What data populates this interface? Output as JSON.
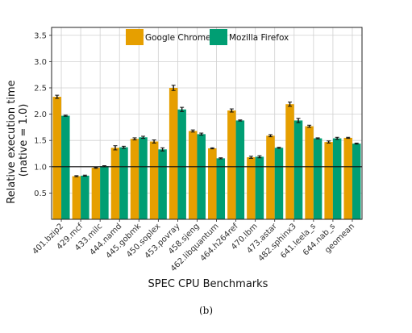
{
  "caption": "(b)",
  "chart_data": {
    "type": "bar",
    "xlabel": "SPEC CPU Benchmarks",
    "ylabel_lines": [
      "Relative execution time",
      "(native = 1.0)"
    ],
    "ylim": [
      0.0,
      3.65
    ],
    "yticks": [
      0.5,
      1.0,
      1.5,
      2.0,
      2.5,
      3.0,
      3.5
    ],
    "ytick_labels": [
      "0.5",
      "1.0",
      "1.5",
      "2.0",
      "2.5",
      "3.0",
      "3.5"
    ],
    "reference_line": 1.0,
    "grid": true,
    "legend_position": "top-center",
    "categories": [
      "401.bzip2",
      "429.mcf",
      "433.milc",
      "444.namd",
      "445.gobmk",
      "450.soplex",
      "453.povray",
      "458.sjeng",
      "462.libquantum",
      "464.h264ref",
      "470.lbm",
      "473.astar",
      "482.sphinx3",
      "641.leela_s",
      "644.nab_s",
      "geomean"
    ],
    "series": [
      {
        "name": "Google Chrome",
        "color": "#E69F00",
        "values": [
          2.33,
          0.82,
          0.98,
          1.36,
          1.53,
          1.48,
          2.5,
          1.68,
          1.35,
          2.07,
          1.18,
          1.59,
          2.19,
          1.77,
          1.47,
          1.55
        ],
        "errors": [
          0.03,
          0.01,
          0.01,
          0.04,
          0.02,
          0.03,
          0.05,
          0.02,
          0.01,
          0.03,
          0.02,
          0.02,
          0.04,
          0.02,
          0.02,
          0.01
        ]
      },
      {
        "name": "Mozilla Firefox",
        "color": "#009E73",
        "values": [
          1.97,
          0.83,
          1.01,
          1.37,
          1.56,
          1.33,
          2.09,
          1.62,
          1.16,
          1.88,
          1.19,
          1.36,
          1.88,
          1.54,
          1.54,
          1.44
        ],
        "errors": [
          0.01,
          0.01,
          0.01,
          0.02,
          0.02,
          0.03,
          0.04,
          0.02,
          0.01,
          0.01,
          0.02,
          0.01,
          0.04,
          0.01,
          0.02,
          0.01
        ]
      }
    ]
  }
}
